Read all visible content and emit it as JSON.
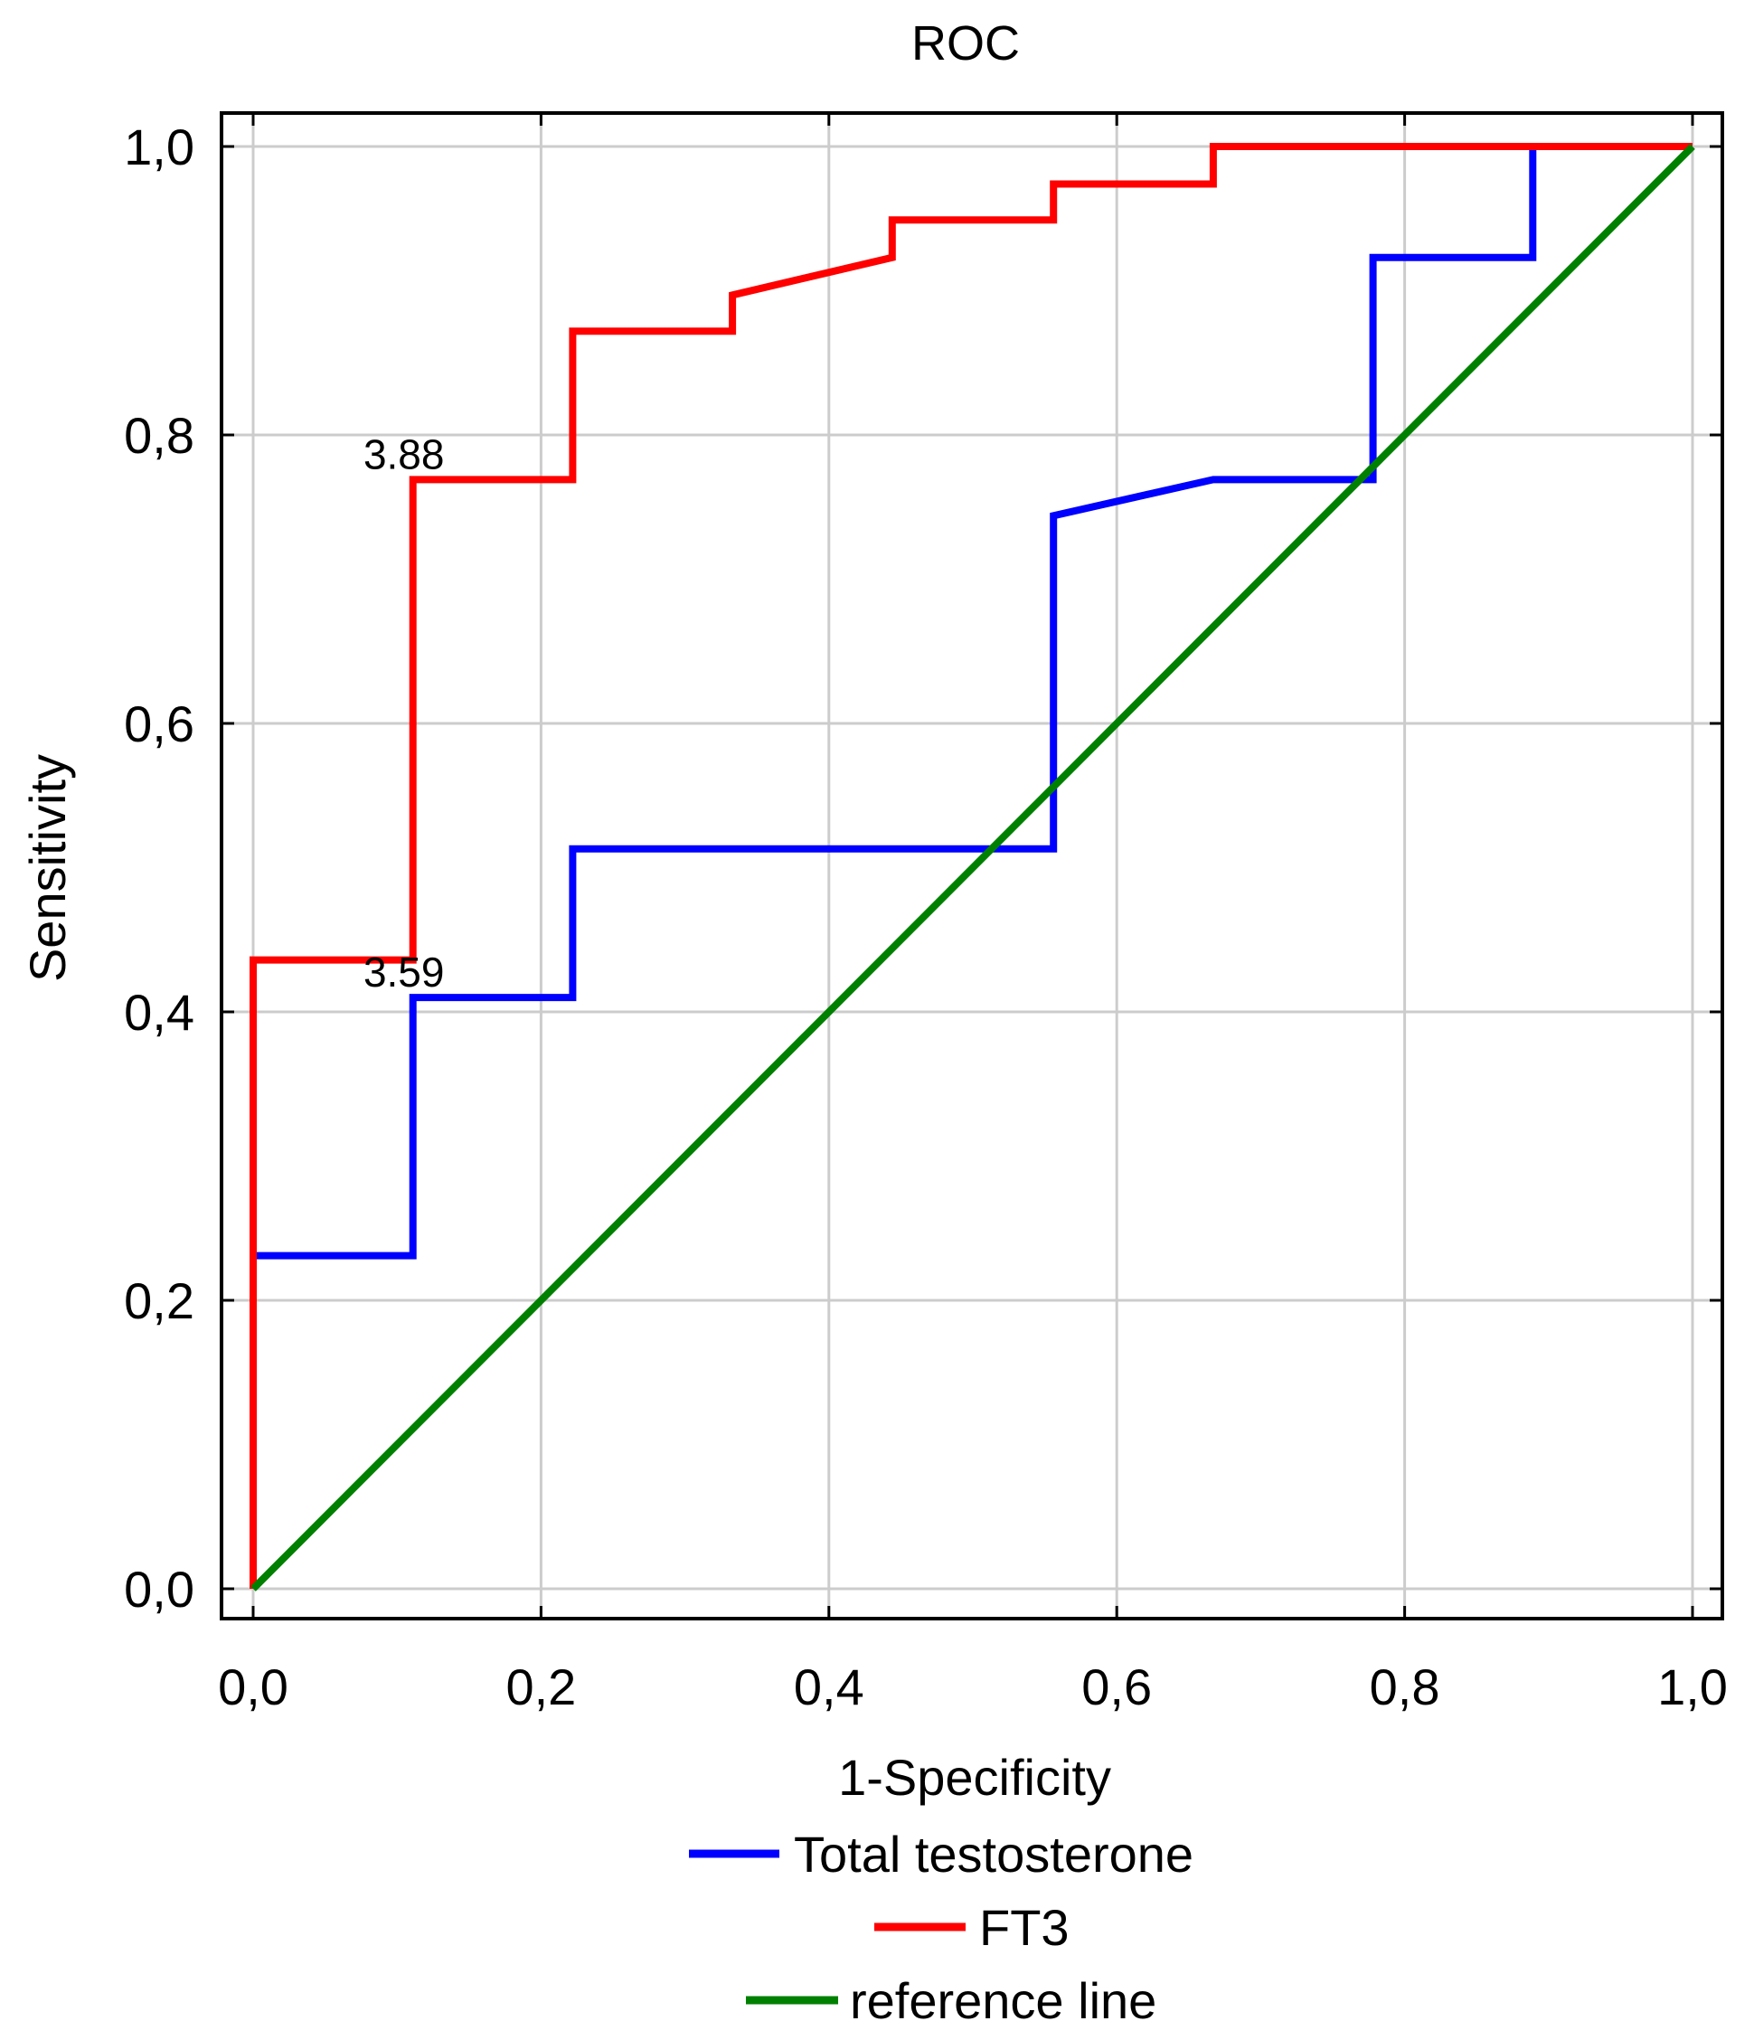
{
  "chart_data": {
    "type": "line",
    "title": "ROC",
    "xlabel": "1-Specificity",
    "ylabel": "Sensitivity",
    "xlim": [
      0,
      1
    ],
    "ylim": [
      0,
      1
    ],
    "grid": true,
    "legend_position": "bottom-center",
    "x_ticks": [
      {
        "value": 0.0,
        "label": "0,0"
      },
      {
        "value": 0.2,
        "label": "0,2"
      },
      {
        "value": 0.4,
        "label": "0,4"
      },
      {
        "value": 0.6,
        "label": "0,6"
      },
      {
        "value": 0.8,
        "label": "0,8"
      },
      {
        "value": 1.0,
        "label": "1,0"
      }
    ],
    "y_ticks": [
      {
        "value": 0.0,
        "label": "0,0"
      },
      {
        "value": 0.2,
        "label": "0,2"
      },
      {
        "value": 0.4,
        "label": "0,4"
      },
      {
        "value": 0.6,
        "label": "0,6"
      },
      {
        "value": 0.8,
        "label": "0,8"
      },
      {
        "value": 1.0,
        "label": "1,0"
      }
    ],
    "series": [
      {
        "name": "Total testosterone",
        "color": "#0000ff",
        "points": [
          [
            0.0,
            0.0
          ],
          [
            0.0,
            0.231
          ],
          [
            0.111,
            0.231
          ],
          [
            0.111,
            0.41
          ],
          [
            0.222,
            0.41
          ],
          [
            0.222,
            0.513
          ],
          [
            0.556,
            0.513
          ],
          [
            0.556,
            0.744
          ],
          [
            0.667,
            0.769
          ],
          [
            0.778,
            0.769
          ],
          [
            0.778,
            0.923
          ],
          [
            0.889,
            0.923
          ],
          [
            0.889,
            1.0
          ],
          [
            1.0,
            1.0
          ]
        ]
      },
      {
        "name": "FT3",
        "color": "#ff0000",
        "points": [
          [
            0.0,
            0.0
          ],
          [
            0.0,
            0.436
          ],
          [
            0.111,
            0.436
          ],
          [
            0.111,
            0.769
          ],
          [
            0.222,
            0.769
          ],
          [
            0.222,
            0.872
          ],
          [
            0.333,
            0.872
          ],
          [
            0.333,
            0.897
          ],
          [
            0.444,
            0.923
          ],
          [
            0.444,
            0.949
          ],
          [
            0.556,
            0.949
          ],
          [
            0.556,
            0.974
          ],
          [
            0.667,
            0.974
          ],
          [
            0.667,
            1.0
          ],
          [
            1.0,
            1.0
          ]
        ]
      },
      {
        "name": "reference line",
        "color": "#008000",
        "points": [
          [
            0.0,
            0.0
          ],
          [
            1.0,
            1.0
          ]
        ]
      }
    ],
    "annotations": [
      {
        "text": "3.88",
        "x": 0.111,
        "y": 0.769
      },
      {
        "text": "3.59",
        "x": 0.111,
        "y": 0.41
      }
    ]
  }
}
